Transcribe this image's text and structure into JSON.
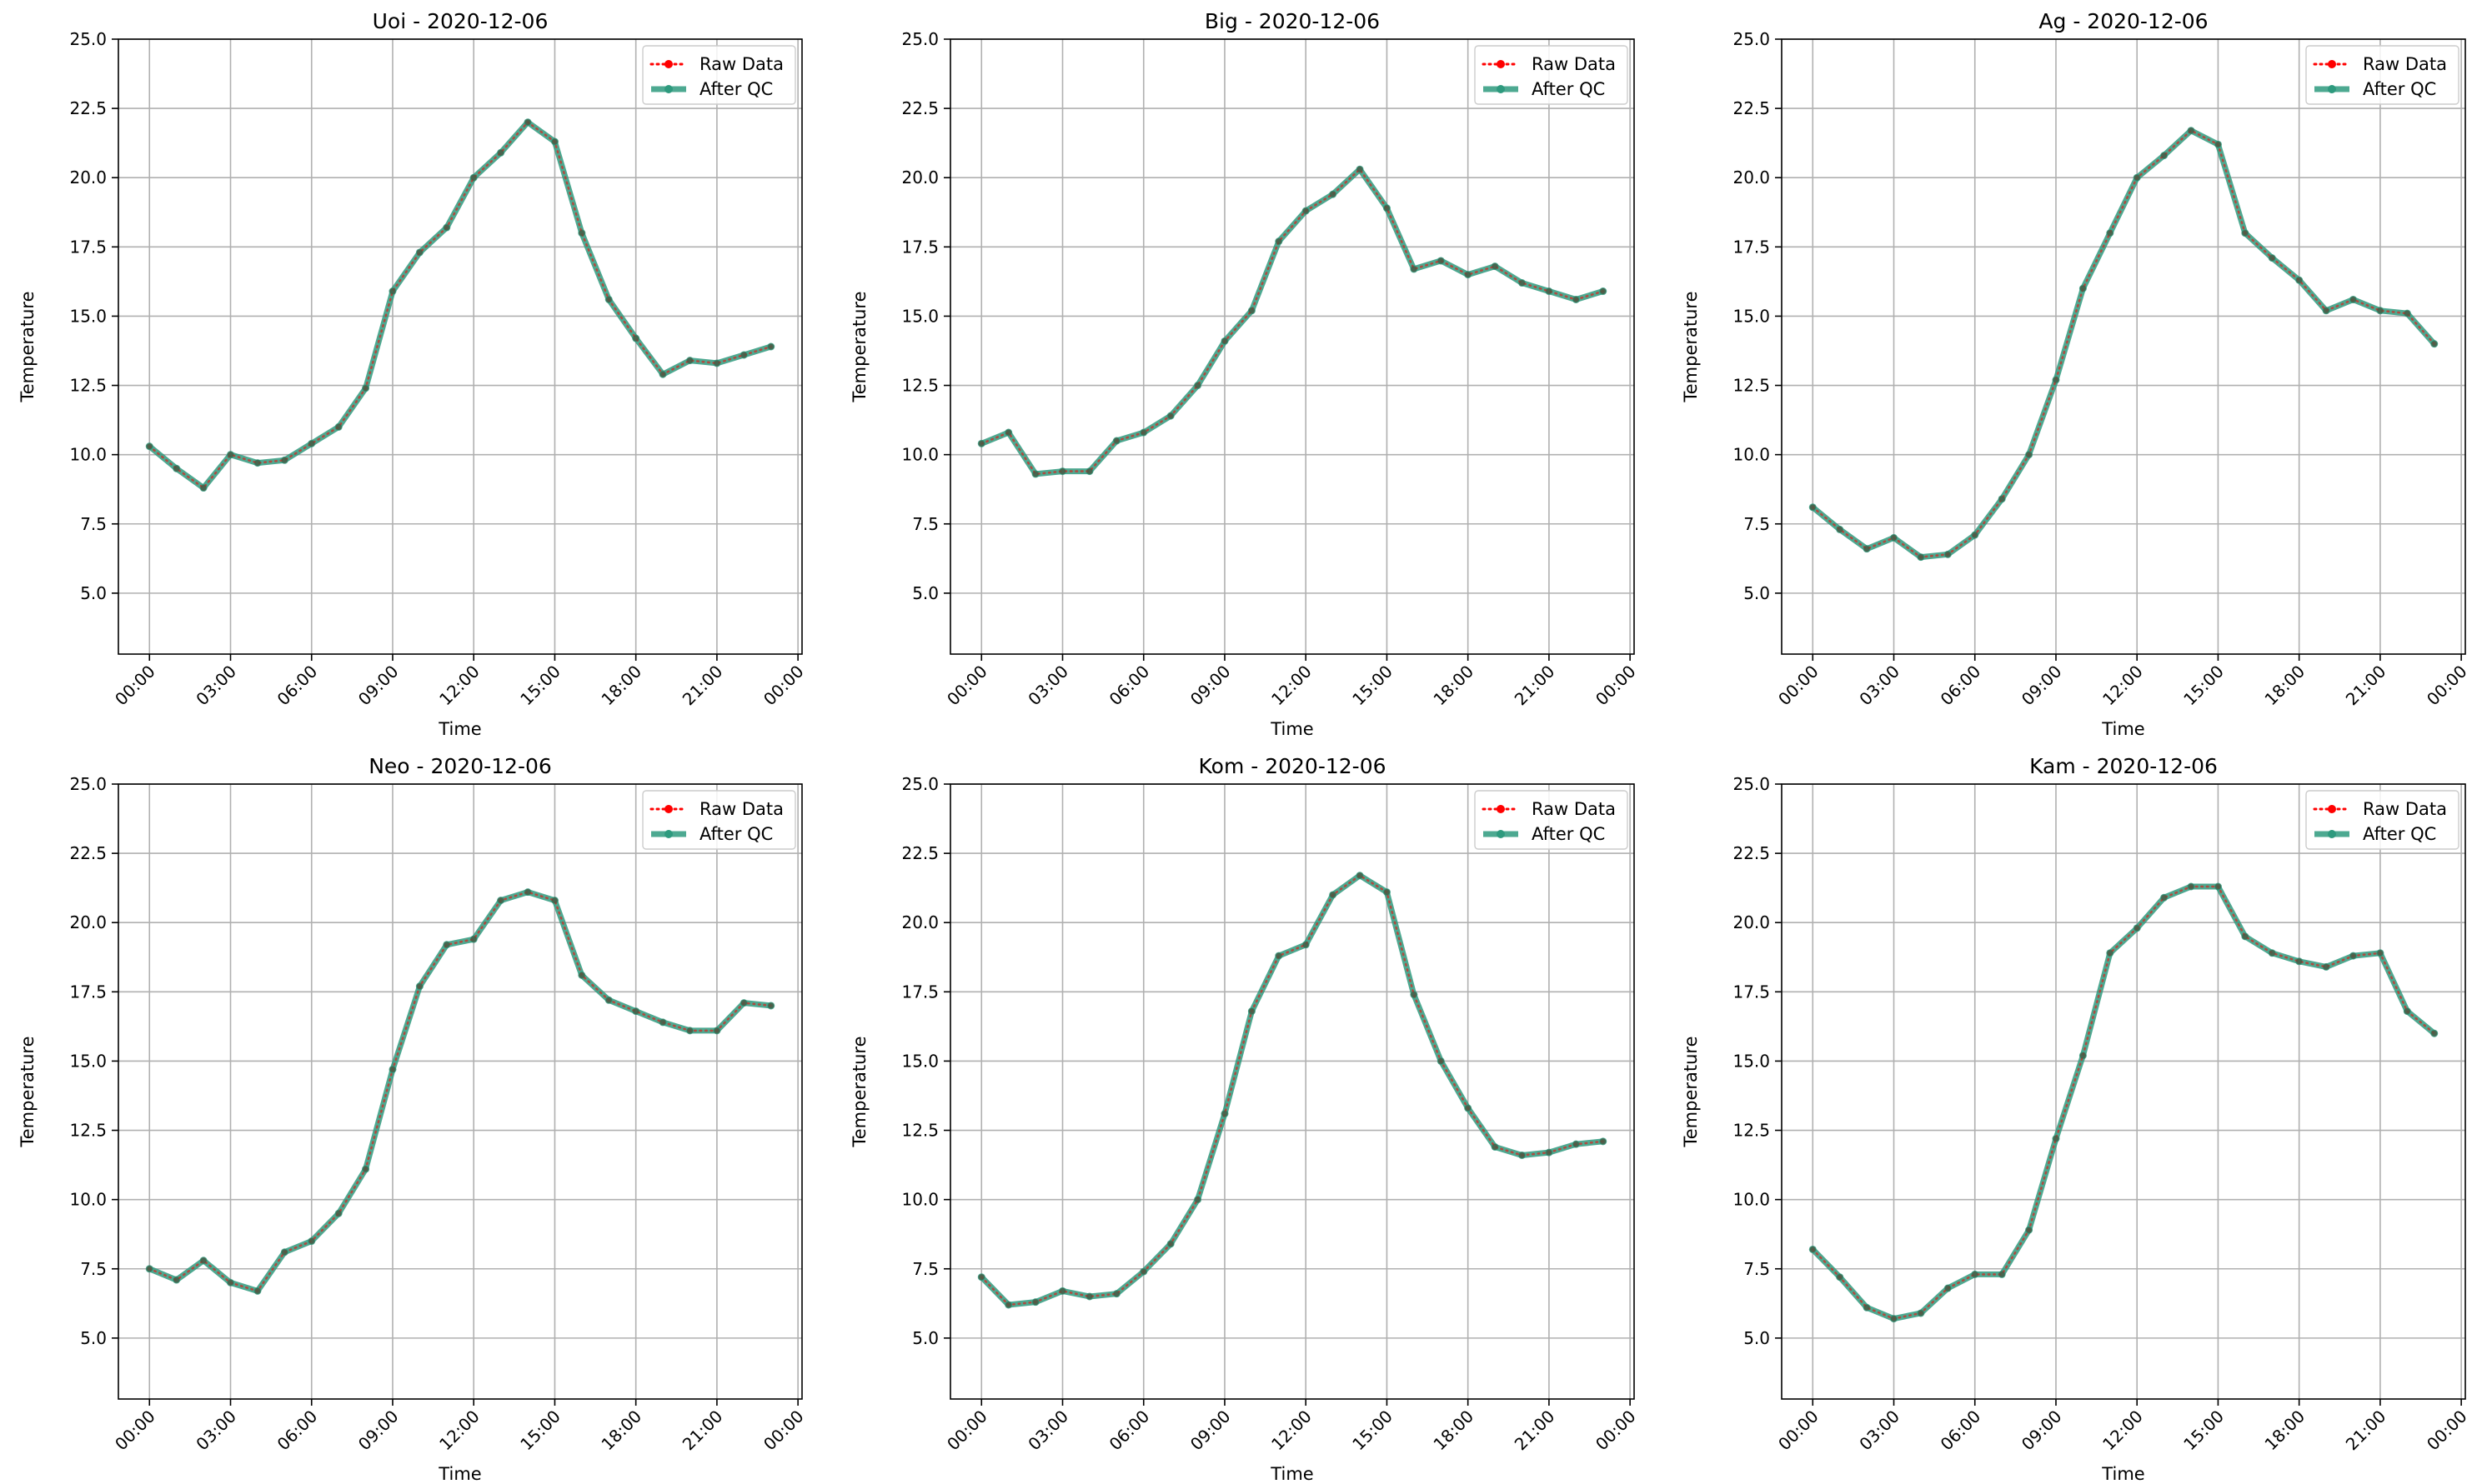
{
  "colors": {
    "raw": "#ff0000",
    "qc": "#2e9a7e",
    "grid": "#b0b0b0"
  },
  "chart_data": [
    {
      "type": "line",
      "title": "Uoi - 2020-12-06",
      "xlabel": "Time",
      "ylabel": "Temperature",
      "xlim": [
        -1.15,
        24.15
      ],
      "ylim": [
        2.8,
        25.0
      ],
      "x_ticks": [
        0,
        3,
        6,
        9,
        12,
        15,
        18,
        21,
        24
      ],
      "x_tick_labels": [
        "00:00",
        "03:00",
        "06:00",
        "09:00",
        "12:00",
        "15:00",
        "18:00",
        "21:00",
        "00:00"
      ],
      "y_ticks": [
        5,
        7.5,
        10,
        12.5,
        15,
        17.5,
        20,
        22.5,
        25
      ],
      "y_tick_labels": [
        "5.0",
        "7.5",
        "10.0",
        "12.5",
        "15.0",
        "17.5",
        "20.0",
        "22.5",
        "25.0"
      ],
      "grid": true,
      "legend_position": "top-right",
      "x": [
        0,
        1,
        2,
        3,
        4,
        5,
        6,
        7,
        8,
        9,
        10,
        11,
        12,
        13,
        14,
        15,
        16,
        17,
        18,
        19,
        20,
        21,
        22,
        23
      ],
      "series": [
        {
          "name": "Raw Data",
          "values": [
            10.3,
            9.5,
            8.8,
            10.0,
            9.7,
            9.8,
            10.4,
            11.0,
            12.4,
            15.9,
            17.3,
            18.2,
            20.0,
            20.9,
            22.0,
            21.3,
            18.0,
            15.6,
            14.2,
            12.9,
            13.4,
            13.3,
            13.6,
            13.9
          ]
        },
        {
          "name": "After QC",
          "values": [
            10.3,
            9.5,
            8.8,
            10.0,
            9.7,
            9.8,
            10.4,
            11.0,
            12.4,
            15.9,
            17.3,
            18.2,
            20.0,
            20.9,
            22.0,
            21.3,
            18.0,
            15.6,
            14.2,
            12.9,
            13.4,
            13.3,
            13.6,
            13.9
          ]
        }
      ]
    },
    {
      "type": "line",
      "title": "Big - 2020-12-06",
      "xlabel": "Time",
      "ylabel": "Temperature",
      "xlim": [
        -1.15,
        24.15
      ],
      "ylim": [
        2.8,
        25.0
      ],
      "x_ticks": [
        0,
        3,
        6,
        9,
        12,
        15,
        18,
        21,
        24
      ],
      "x_tick_labels": [
        "00:00",
        "03:00",
        "06:00",
        "09:00",
        "12:00",
        "15:00",
        "18:00",
        "21:00",
        "00:00"
      ],
      "y_ticks": [
        5,
        7.5,
        10,
        12.5,
        15,
        17.5,
        20,
        22.5,
        25
      ],
      "y_tick_labels": [
        "5.0",
        "7.5",
        "10.0",
        "12.5",
        "15.0",
        "17.5",
        "20.0",
        "22.5",
        "25.0"
      ],
      "grid": true,
      "legend_position": "top-right",
      "x": [
        0,
        1,
        2,
        3,
        4,
        5,
        6,
        7,
        8,
        9,
        10,
        11,
        12,
        13,
        14,
        15,
        16,
        17,
        18,
        19,
        20,
        21,
        22,
        23
      ],
      "series": [
        {
          "name": "Raw Data",
          "values": [
            10.4,
            10.8,
            9.3,
            9.4,
            9.4,
            10.5,
            10.8,
            11.4,
            12.5,
            14.1,
            15.2,
            17.7,
            18.8,
            19.4,
            20.3,
            18.9,
            16.7,
            17.0,
            16.5,
            16.8,
            16.2,
            15.9,
            15.6,
            15.9
          ]
        },
        {
          "name": "After QC",
          "values": [
            10.4,
            10.8,
            9.3,
            9.4,
            9.4,
            10.5,
            10.8,
            11.4,
            12.5,
            14.1,
            15.2,
            17.7,
            18.8,
            19.4,
            20.3,
            18.9,
            16.7,
            17.0,
            16.5,
            16.8,
            16.2,
            15.9,
            15.6,
            15.9
          ]
        }
      ]
    },
    {
      "type": "line",
      "title": "Ag - 2020-12-06",
      "xlabel": "Time",
      "ylabel": "Temperature",
      "xlim": [
        -1.15,
        24.15
      ],
      "ylim": [
        2.8,
        25.0
      ],
      "x_ticks": [
        0,
        3,
        6,
        9,
        12,
        15,
        18,
        21,
        24
      ],
      "x_tick_labels": [
        "00:00",
        "03:00",
        "06:00",
        "09:00",
        "12:00",
        "15:00",
        "18:00",
        "21:00",
        "00:00"
      ],
      "y_ticks": [
        5,
        7.5,
        10,
        12.5,
        15,
        17.5,
        20,
        22.5,
        25
      ],
      "y_tick_labels": [
        "5.0",
        "7.5",
        "10.0",
        "12.5",
        "15.0",
        "17.5",
        "20.0",
        "22.5",
        "25.0"
      ],
      "grid": true,
      "legend_position": "top-right",
      "x": [
        0,
        1,
        2,
        3,
        4,
        5,
        6,
        7,
        8,
        9,
        10,
        11,
        12,
        13,
        14,
        15,
        16,
        17,
        18,
        19,
        20,
        21,
        22,
        23
      ],
      "series": [
        {
          "name": "Raw Data",
          "values": [
            8.1,
            7.3,
            6.6,
            7.0,
            6.3,
            6.4,
            7.1,
            8.4,
            10.0,
            12.7,
            16.0,
            18.0,
            20.0,
            20.8,
            21.7,
            21.2,
            18.0,
            17.1,
            16.3,
            15.2,
            15.6,
            15.2,
            15.1,
            14.0
          ]
        },
        {
          "name": "After QC",
          "values": [
            8.1,
            7.3,
            6.6,
            7.0,
            6.3,
            6.4,
            7.1,
            8.4,
            10.0,
            12.7,
            16.0,
            18.0,
            20.0,
            20.8,
            21.7,
            21.2,
            18.0,
            17.1,
            16.3,
            15.2,
            15.6,
            15.2,
            15.1,
            14.0
          ]
        }
      ]
    },
    {
      "type": "line",
      "title": "Neo - 2020-12-06",
      "xlabel": "Time",
      "ylabel": "Temperature",
      "xlim": [
        -1.15,
        24.15
      ],
      "ylim": [
        2.8,
        25.0
      ],
      "x_ticks": [
        0,
        3,
        6,
        9,
        12,
        15,
        18,
        21,
        24
      ],
      "x_tick_labels": [
        "00:00",
        "03:00",
        "06:00",
        "09:00",
        "12:00",
        "15:00",
        "18:00",
        "21:00",
        "00:00"
      ],
      "y_ticks": [
        5,
        7.5,
        10,
        12.5,
        15,
        17.5,
        20,
        22.5,
        25
      ],
      "y_tick_labels": [
        "5.0",
        "7.5",
        "10.0",
        "12.5",
        "15.0",
        "17.5",
        "20.0",
        "22.5",
        "25.0"
      ],
      "grid": true,
      "legend_position": "top-right",
      "x": [
        0,
        1,
        2,
        3,
        4,
        5,
        6,
        7,
        8,
        9,
        10,
        11,
        12,
        13,
        14,
        15,
        16,
        17,
        18,
        19,
        20,
        21,
        22,
        23
      ],
      "series": [
        {
          "name": "Raw Data",
          "values": [
            7.5,
            7.1,
            7.8,
            7.0,
            6.7,
            8.1,
            8.5,
            9.5,
            11.1,
            14.7,
            17.7,
            19.2,
            19.4,
            20.8,
            21.1,
            20.8,
            18.1,
            17.2,
            16.8,
            16.4,
            16.1,
            16.1,
            17.1,
            17.0
          ]
        },
        {
          "name": "After QC",
          "values": [
            7.5,
            7.1,
            7.8,
            7.0,
            6.7,
            8.1,
            8.5,
            9.5,
            11.1,
            14.7,
            17.7,
            19.2,
            19.4,
            20.8,
            21.1,
            20.8,
            18.1,
            17.2,
            16.8,
            16.4,
            16.1,
            16.1,
            17.1,
            17.0
          ]
        }
      ]
    },
    {
      "type": "line",
      "title": "Kom - 2020-12-06",
      "xlabel": "Time",
      "ylabel": "Temperature",
      "xlim": [
        -1.15,
        24.15
      ],
      "ylim": [
        2.8,
        25.0
      ],
      "x_ticks": [
        0,
        3,
        6,
        9,
        12,
        15,
        18,
        21,
        24
      ],
      "x_tick_labels": [
        "00:00",
        "03:00",
        "06:00",
        "09:00",
        "12:00",
        "15:00",
        "18:00",
        "21:00",
        "00:00"
      ],
      "y_ticks": [
        5,
        7.5,
        10,
        12.5,
        15,
        17.5,
        20,
        22.5,
        25
      ],
      "y_tick_labels": [
        "5.0",
        "7.5",
        "10.0",
        "12.5",
        "15.0",
        "17.5",
        "20.0",
        "22.5",
        "25.0"
      ],
      "grid": true,
      "legend_position": "top-right",
      "x": [
        0,
        1,
        2,
        3,
        4,
        5,
        6,
        7,
        8,
        9,
        10,
        11,
        12,
        13,
        14,
        15,
        16,
        17,
        18,
        19,
        20,
        21,
        22,
        23
      ],
      "series": [
        {
          "name": "Raw Data",
          "values": [
            7.2,
            6.2,
            6.3,
            6.7,
            6.5,
            6.6,
            7.4,
            8.4,
            10.0,
            13.1,
            16.8,
            18.8,
            19.2,
            21.0,
            21.7,
            21.1,
            17.4,
            15.0,
            13.3,
            11.9,
            11.6,
            11.7,
            12.0,
            12.1
          ]
        },
        {
          "name": "After QC",
          "values": [
            7.2,
            6.2,
            6.3,
            6.7,
            6.5,
            6.6,
            7.4,
            8.4,
            10.0,
            13.1,
            16.8,
            18.8,
            19.2,
            21.0,
            21.7,
            21.1,
            17.4,
            15.0,
            13.3,
            11.9,
            11.6,
            11.7,
            12.0,
            12.1
          ]
        }
      ]
    },
    {
      "type": "line",
      "title": "Kam - 2020-12-06",
      "xlabel": "Time",
      "ylabel": "Temperature",
      "xlim": [
        -1.15,
        24.15
      ],
      "ylim": [
        2.8,
        25.0
      ],
      "x_ticks": [
        0,
        3,
        6,
        9,
        12,
        15,
        18,
        21,
        24
      ],
      "x_tick_labels": [
        "00:00",
        "03:00",
        "06:00",
        "09:00",
        "12:00",
        "15:00",
        "18:00",
        "21:00",
        "00:00"
      ],
      "y_ticks": [
        5,
        7.5,
        10,
        12.5,
        15,
        17.5,
        20,
        22.5,
        25
      ],
      "y_tick_labels": [
        "5.0",
        "7.5",
        "10.0",
        "12.5",
        "15.0",
        "17.5",
        "20.0",
        "22.5",
        "25.0"
      ],
      "grid": true,
      "legend_position": "top-right",
      "x": [
        0,
        1,
        2,
        3,
        4,
        5,
        6,
        7,
        8,
        9,
        10,
        11,
        12,
        13,
        14,
        15,
        16,
        17,
        18,
        19,
        20,
        21,
        22,
        23
      ],
      "series": [
        {
          "name": "Raw Data",
          "values": [
            8.2,
            7.2,
            6.1,
            5.7,
            5.9,
            6.8,
            7.3,
            7.3,
            8.9,
            12.2,
            15.2,
            18.9,
            19.8,
            20.9,
            21.3,
            21.3,
            19.5,
            18.9,
            18.6,
            18.4,
            18.8,
            18.9,
            16.8,
            16.0
          ]
        },
        {
          "name": "After QC",
          "values": [
            8.2,
            7.2,
            6.1,
            5.7,
            5.9,
            6.8,
            7.3,
            7.3,
            8.9,
            12.2,
            15.2,
            18.9,
            19.8,
            20.9,
            21.3,
            21.3,
            19.5,
            18.9,
            18.6,
            18.4,
            18.8,
            18.9,
            16.8,
            16.0
          ]
        }
      ]
    }
  ]
}
